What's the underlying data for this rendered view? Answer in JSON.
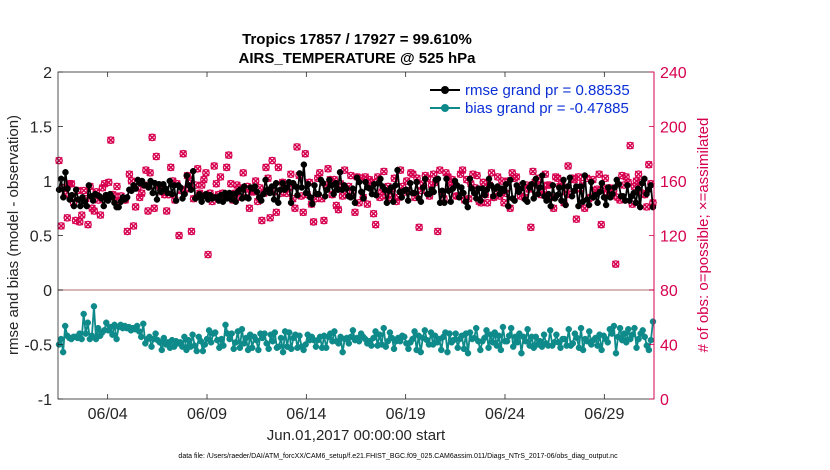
{
  "chart_data": {
    "type": "line",
    "title": "Tropics 17857 / 17927 = 99.610%",
    "subtitle": "AIRS_TEMPERATURE @ 525 hPa",
    "xlabel": "Jun.01,2017 00:00:00 start",
    "ylabel": "rmse and bias (model - observation)",
    "ylabel_right": "# of obs: o=possible; ×=assimilated",
    "footer": "data file: /Users/raeder/DAI/ATM_forcXX/CAM6_setup/f.e21.FHIST_BGC.f09_025.CAM6assim.011/Diags_NTrS_2017-06/obs_diag_output.nc",
    "x_start": 1,
    "x_end": 31,
    "xlim": [
      1,
      31
    ],
    "ylim": [
      -1,
      2
    ],
    "ylim_right": [
      0,
      240
    ],
    "xticks": [
      3.5,
      8.5,
      13.5,
      18.5,
      23.5,
      28.5
    ],
    "xtick_labels": [
      "06/04",
      "06/09",
      "06/14",
      "06/19",
      "06/24",
      "06/29"
    ],
    "yticks": [
      -1,
      -0.5,
      0,
      0.5,
      1,
      1.5,
      2
    ],
    "ytick_labels": [
      "-1",
      "-0.5",
      "0",
      "0.5",
      "1",
      "1.5",
      "2"
    ],
    "yticks_right": [
      0,
      40,
      80,
      120,
      160,
      200,
      240
    ],
    "ytick_labels_right": [
      "0",
      "40",
      "80",
      "120",
      "160",
      "200",
      "240"
    ],
    "legend_position": "top-right",
    "colors": {
      "rmse": "#000000",
      "bias": "#0f8a8a",
      "obs": "#d6004f",
      "zero_line": "#c8a0a0",
      "legend_text": "#0a2fd6"
    },
    "series": [
      {
        "name": "rmse grand pr = 0.88535",
        "axis": "left",
        "values": [
          0.92,
          1.02,
          0.85,
          1.08,
          0.93,
          0.83,
          0.87,
          0.77,
          0.92,
          0.83,
          0.77,
          0.85,
          0.81,
          0.77,
          0.96,
          0.86,
          0.82,
          0.88,
          0.87,
          0.86,
          0.84,
          0.77,
          0.87,
          0.82,
          0.88,
          0.85,
          0.8,
          0.76,
          0.76,
          0.81,
          0.85,
          0.83,
          0.85,
          0.92,
          0.91,
          0.96,
          0.93,
          1.01,
          0.98,
          1.0,
          0.96,
          0.96,
          0.94,
          1.0,
          0.89,
          0.98,
          0.83,
          0.97,
          0.9,
          0.97,
          0.93,
          0.89,
          1.0,
          0.88,
          0.96,
          0.82,
          0.96,
          0.94,
          0.84,
          0.88,
          1.05,
          0.96,
          0.92,
          1.09,
          0.84,
          0.85,
          0.88,
          0.81,
          0.86,
          0.88,
          0.83,
          0.87,
          0.84,
          0.85,
          0.85,
          0.82,
          0.87,
          0.81,
          0.89,
          0.84,
          0.89,
          0.83,
          0.88,
          0.81,
          0.9,
          0.92,
          0.84,
          0.95,
          0.85,
          0.84,
          0.94,
          0.93,
          0.95,
          0.9,
          0.85,
          0.82,
          0.88,
          1.01,
          0.92,
          0.89,
          0.95,
          0.83,
          0.98,
          0.8,
          0.92,
          0.98,
          0.92,
          0.94,
          0.99,
          0.8,
          0.98,
          0.95,
          0.87,
          1.07,
          0.94,
          1.15,
          0.89,
          0.97,
          0.85,
          0.79,
          0.96,
          0.88,
          0.88,
          1.01,
          0.98,
          0.86,
          0.92,
          1.01,
          0.96,
          0.88,
          0.98,
          0.92,
          1.08,
          0.92,
          0.96,
          0.93,
          0.86,
          0.85,
          0.93,
          0.8,
          1.03,
          0.99,
          0.9,
          0.84,
          0.99,
          0.94,
          0.93,
          0.88,
          0.97,
          0.87,
          0.98,
          1.02,
          0.95,
          0.92,
          0.8,
          0.91,
          0.94,
          0.81,
          0.96,
          1.1,
          0.9,
          0.85,
          0.91,
          0.92,
          0.82,
          0.98,
          0.89,
          0.89,
          0.99,
          0.84,
          0.81,
          0.94,
          1.02,
          0.88,
          0.88,
          0.92,
          0.9,
          1.01,
          1.02,
          0.8,
          0.91,
          0.8,
          1.02,
          0.91,
          0.81,
          0.93,
          1.0,
          0.96,
          0.85,
          0.94,
          0.89,
          0.81,
          0.76,
          1.02,
          0.93,
          0.89,
          0.84,
          0.93,
          0.82,
          0.93,
          0.87,
          0.92,
          1.02,
          0.96,
          0.86,
          0.93,
          0.95,
          0.88,
          0.93,
          0.91,
          0.97,
          0.77,
          1.01,
          0.84,
          0.82,
          0.96,
          0.9,
          0.93,
          0.98,
          0.83,
          0.81,
          0.94,
          0.97,
          0.84,
          1.02,
          0.88,
          0.94,
          1.05,
          0.86,
          0.82,
          0.88,
          0.77,
          0.96,
          0.84,
          0.87,
          0.94,
          0.82,
          1.01,
          0.78,
          0.95,
          1.03,
          0.86,
          0.91,
          0.95,
          0.77,
          0.95,
          0.81,
          1.05,
          0.83,
          0.78,
          0.99,
          0.85,
          0.87,
          0.8,
          0.9,
          0.98,
          0.85,
          0.78,
          0.94,
          0.85,
          0.88,
          0.94,
          1.01,
          0.97,
          0.86,
          0.86,
          0.82,
          0.96,
          0.82,
          0.86,
          0.89,
          0.8,
          0.93,
          0.76,
          0.98,
          1.02,
          0.88,
          0.92,
          0.96,
          0.76
        ]
      },
      {
        "name": "bias grand pr = -0.47885",
        "axis": "left",
        "values": [
          -0.5,
          -0.45,
          -0.57,
          -0.33,
          -0.42,
          -0.44,
          -0.45,
          -0.43,
          -0.43,
          -0.44,
          -0.4,
          -0.45,
          -0.22,
          -0.4,
          -0.3,
          -0.45,
          -0.42,
          -0.15,
          -0.45,
          -0.35,
          -0.42,
          -0.39,
          -0.37,
          -0.3,
          -0.37,
          -0.34,
          -0.41,
          -0.32,
          -0.45,
          -0.34,
          -0.32,
          -0.35,
          -0.33,
          -0.35,
          -0.34,
          -0.37,
          -0.35,
          -0.36,
          -0.33,
          -0.38,
          -0.43,
          -0.31,
          -0.49,
          -0.45,
          -0.43,
          -0.52,
          -0.45,
          -0.4,
          -0.46,
          -0.48,
          -0.55,
          -0.44,
          -0.5,
          -0.48,
          -0.53,
          -0.46,
          -0.52,
          -0.47,
          -0.49,
          -0.48,
          -0.52,
          -0.43,
          -0.55,
          -0.46,
          -0.52,
          -0.41,
          -0.51,
          -0.56,
          -0.43,
          -0.47,
          -0.56,
          -0.5,
          -0.45,
          -0.37,
          -0.48,
          -0.4,
          -0.39,
          -0.46,
          -0.53,
          -0.45,
          -0.51,
          -0.32,
          -0.4,
          -0.45,
          -0.4,
          -0.54,
          -0.48,
          -0.38,
          -0.53,
          -0.36,
          -0.49,
          -0.44,
          -0.55,
          -0.41,
          -0.53,
          -0.43,
          -0.46,
          -0.55,
          -0.4,
          -0.44,
          -0.4,
          -0.49,
          -0.54,
          -0.41,
          -0.47,
          -0.39,
          -0.53,
          -0.52,
          -0.44,
          -0.57,
          -0.38,
          -0.52,
          -0.39,
          -0.54,
          -0.44,
          -0.41,
          -0.53,
          -0.42,
          -0.52,
          -0.55,
          -0.5,
          -0.41,
          -0.46,
          -0.43,
          -0.46,
          -0.52,
          -0.46,
          -0.43,
          -0.53,
          -0.42,
          -0.53,
          -0.43,
          -0.4,
          -0.47,
          -0.38,
          -0.47,
          -0.49,
          -0.43,
          -0.57,
          -0.45,
          -0.44,
          -0.49,
          -0.43,
          -0.37,
          -0.46,
          -0.44,
          -0.47,
          -0.4,
          -0.43,
          -0.45,
          -0.49,
          -0.47,
          -0.51,
          -0.44,
          -0.38,
          -0.51,
          -0.41,
          -0.5,
          -0.35,
          -0.52,
          -0.47,
          -0.39,
          -0.44,
          -0.54,
          -0.47,
          -0.44,
          -0.47,
          -0.42,
          -0.43,
          -0.49,
          -0.54,
          -0.48,
          -0.45,
          -0.38,
          -0.55,
          -0.42,
          -0.57,
          -0.44,
          -0.37,
          -0.46,
          -0.5,
          -0.39,
          -0.5,
          -0.42,
          -0.48,
          -0.45,
          -0.55,
          -0.43,
          -0.39,
          -0.57,
          -0.4,
          -0.48,
          -0.46,
          -0.4,
          -0.53,
          -0.45,
          -0.42,
          -0.54,
          -0.4,
          -0.58,
          -0.39,
          -0.45,
          -0.44,
          -0.35,
          -0.47,
          -0.55,
          -0.47,
          -0.44,
          -0.37,
          -0.53,
          -0.41,
          -0.48,
          -0.39,
          -0.51,
          -0.42,
          -0.55,
          -0.34,
          -0.47,
          -0.47,
          -0.42,
          -0.35,
          -0.52,
          -0.43,
          -0.48,
          -0.4,
          -0.58,
          -0.43,
          -0.47,
          -0.36,
          -0.51,
          -0.43,
          -0.53,
          -0.43,
          -0.5,
          -0.47,
          -0.52,
          -0.41,
          -0.49,
          -0.51,
          -0.37,
          -0.51,
          -0.48,
          -0.41,
          -0.48,
          -0.53,
          -0.45,
          -0.45,
          -0.51,
          -0.36,
          -0.51,
          -0.49,
          -0.4,
          -0.44,
          -0.53,
          -0.35,
          -0.55,
          -0.45,
          -0.47,
          -0.38,
          -0.5,
          -0.46,
          -0.44,
          -0.51,
          -0.41,
          -0.55,
          -0.42,
          -0.45,
          -0.48,
          -0.36,
          -0.4,
          -0.33,
          -0.58,
          -0.43,
          -0.35,
          -0.46,
          -0.4,
          -0.48,
          -0.36,
          -0.45,
          -0.41,
          -0.35,
          -0.53,
          -0.45,
          -0.4,
          -0.37,
          -0.43,
          -0.51,
          -0.55,
          -0.46,
          -0.29
        ]
      },
      {
        "name": "# of obs possible",
        "axis": "right",
        "values": [
          175,
          127,
          155,
          150,
          133,
          158,
          158,
          144,
          131,
          153,
          130,
          135,
          153,
          147,
          128,
          156,
          140,
          138,
          152,
          146,
          135,
          155,
          158,
          149,
          159,
          190,
          150,
          149,
          156,
          145,
          149,
          147,
          146,
          123,
          165,
          160,
          127,
          141,
          155,
          148,
          151,
          157,
          168,
          138,
          166,
          192,
          140,
          178,
          157,
          155,
          152,
          150,
          138,
          150,
          170,
          160,
          146,
          158,
          120,
          153,
          180,
          154,
          164,
          161,
          123,
          147,
          157,
          169,
          151,
          157,
          161,
          166,
          106,
          151,
          145,
          171,
          158,
          150,
          163,
          151,
          149,
          170,
          179,
          158,
          146,
          151,
          157,
          155,
          148,
          166,
          154,
          156,
          140,
          152,
          152,
          160,
          145,
          155,
          131,
          151,
          170,
          162,
          133,
          175,
          152,
          137,
          170,
          151,
          159,
          154,
          151,
          155,
          165,
          147,
          140,
          185,
          164,
          149,
          137,
          180,
          150,
          159,
          143,
          130,
          147,
          162,
          166,
          147,
          131,
          157,
          169,
          161,
          150,
          161,
          142,
          139,
          158,
          149,
          168,
          152,
          156,
          164,
          152,
          137,
          163,
          144,
          162,
          148,
          163,
          143,
          161,
          159,
          136,
          128,
          163,
          148,
          152,
          167,
          149,
          156,
          148,
          153,
          162,
          145,
          148,
          168,
          156,
          152,
          160,
          153,
          166,
          165,
          148,
          162,
          126,
          153,
          158,
          164,
          162,
          149,
          157,
          165,
          159,
          123,
          168,
          152,
          147,
          166,
          163,
          157,
          161,
          159,
          149,
          149,
          165,
          168,
          146,
          161,
          147,
          158,
          165,
          155,
          164,
          145,
          144,
          159,
          150,
          144,
          157,
          166,
          148,
          153,
          163,
          149,
          160,
          144,
          151,
          160,
          140,
          166,
          162,
          163,
          154,
          149,
          157,
          148,
          157,
          154,
          126,
          167,
          159,
          157,
          162,
          150,
          153,
          165,
          157,
          157,
          148,
          140,
          163,
          162,
          156,
          159,
          144,
          152,
          171,
          150,
          162,
          161,
          132,
          163,
          154,
          158,
          140,
          162,
          147,
          148,
          161,
          153,
          154,
          165,
          128,
          155,
          162,
          151,
          155,
          149,
          153,
          99,
          148,
          146,
          164,
          157,
          163,
          159,
          186,
          143,
          156,
          160,
          165,
          159,
          151,
          150,
          141,
          172,
          158,
          144
        ]
      },
      {
        "name": "# of obs assimilated",
        "axis": "right",
        "values": [
          175,
          127,
          155,
          150,
          133,
          158,
          158,
          144,
          131,
          153,
          130,
          135,
          153,
          147,
          128,
          156,
          140,
          138,
          152,
          146,
          135,
          155,
          158,
          149,
          159,
          190,
          150,
          149,
          156,
          145,
          149,
          147,
          146,
          123,
          165,
          160,
          127,
          141,
          155,
          148,
          151,
          157,
          168,
          138,
          166,
          192,
          140,
          178,
          157,
          155,
          152,
          150,
          138,
          150,
          170,
          160,
          146,
          158,
          120,
          153,
          180,
          154,
          164,
          161,
          123,
          147,
          157,
          169,
          151,
          157,
          161,
          166,
          106,
          151,
          145,
          171,
          158,
          150,
          163,
          151,
          149,
          170,
          179,
          158,
          146,
          151,
          157,
          155,
          148,
          166,
          154,
          156,
          140,
          152,
          152,
          160,
          145,
          155,
          131,
          151,
          170,
          162,
          133,
          175,
          152,
          137,
          170,
          151,
          159,
          154,
          151,
          155,
          165,
          147,
          140,
          185,
          164,
          149,
          137,
          180,
          150,
          159,
          143,
          130,
          147,
          162,
          166,
          147,
          131,
          157,
          169,
          161,
          150,
          161,
          142,
          139,
          158,
          149,
          168,
          152,
          156,
          164,
          152,
          137,
          163,
          144,
          162,
          148,
          163,
          143,
          161,
          159,
          136,
          128,
          163,
          148,
          152,
          167,
          149,
          156,
          148,
          153,
          162,
          145,
          148,
          168,
          156,
          152,
          160,
          153,
          166,
          165,
          148,
          162,
          126,
          153,
          158,
          164,
          162,
          149,
          157,
          165,
          159,
          123,
          168,
          152,
          147,
          166,
          163,
          157,
          161,
          159,
          149,
          149,
          165,
          168,
          146,
          161,
          147,
          158,
          165,
          155,
          164,
          145,
          144,
          159,
          150,
          144,
          157,
          166,
          148,
          153,
          163,
          149,
          160,
          144,
          151,
          160,
          140,
          166,
          162,
          163,
          154,
          149,
          157,
          148,
          157,
          154,
          126,
          167,
          159,
          157,
          162,
          150,
          153,
          165,
          157,
          157,
          148,
          140,
          163,
          162,
          156,
          159,
          144,
          152,
          171,
          150,
          162,
          161,
          132,
          163,
          154,
          158,
          140,
          162,
          147,
          148,
          161,
          153,
          154,
          165,
          128,
          155,
          162,
          151,
          155,
          149,
          153,
          99,
          148,
          146,
          164,
          157,
          163,
          159,
          186,
          143,
          156,
          160,
          165,
          159,
          151,
          150,
          141,
          172,
          158,
          144
        ]
      }
    ]
  }
}
